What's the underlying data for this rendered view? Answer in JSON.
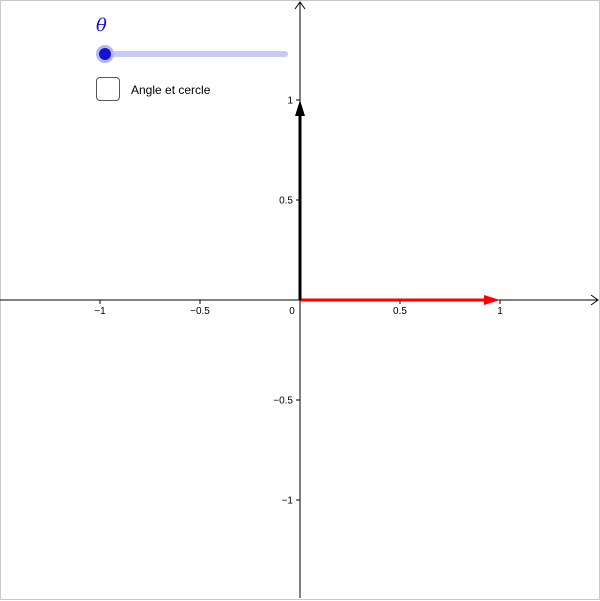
{
  "slider": {
    "name": "θ",
    "value_fraction": 0,
    "color": "#1313d6"
  },
  "checkbox": {
    "label": "Angle et cercle",
    "checked": false
  },
  "axes": {
    "x_range": [
      -1.5,
      1.5
    ],
    "y_range": [
      -1.5,
      1.5
    ],
    "origin_label": "0",
    "x_ticks": [
      {
        "value": -1,
        "label": "−1"
      },
      {
        "value": -0.5,
        "label": "−0.5"
      },
      {
        "value": 0.5,
        "label": "0.5"
      },
      {
        "value": 1,
        "label": "1"
      }
    ],
    "y_ticks": [
      {
        "value": 1,
        "label": "1"
      },
      {
        "value": 0.5,
        "label": "0.5"
      },
      {
        "value": -0.5,
        "label": "−0.5"
      },
      {
        "value": -1,
        "label": "−1"
      }
    ]
  },
  "vectors": [
    {
      "name": "red-vector",
      "from": [
        0,
        0
      ],
      "to": [
        1,
        0
      ],
      "color": "#ff0000"
    },
    {
      "name": "black-vector",
      "from": [
        0,
        0
      ],
      "to": [
        0,
        1
      ],
      "color": "#000000"
    }
  ]
}
